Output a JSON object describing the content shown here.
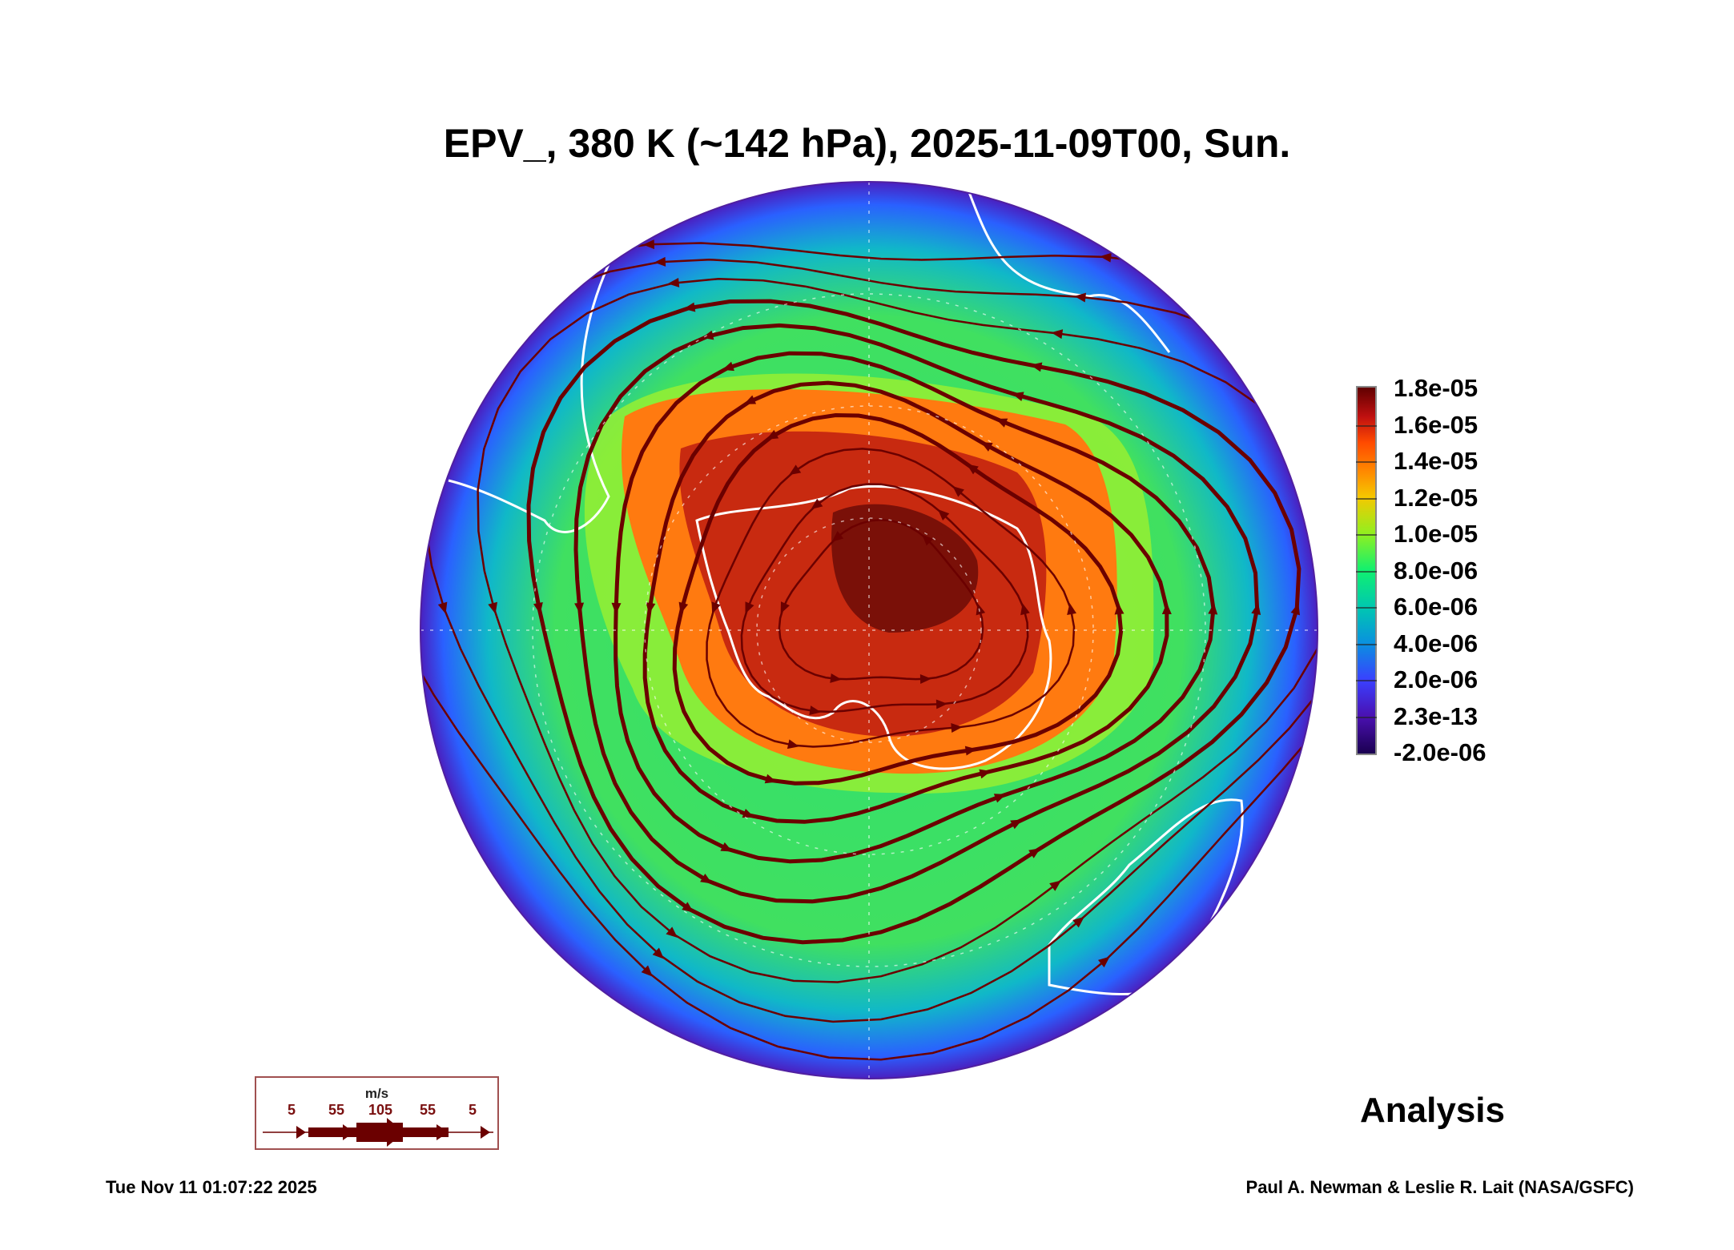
{
  "chart_data": {
    "type": "heatmap",
    "projection": "south-polar-stereographic",
    "title": "EPV_, 380 K (~142 hPa), 2025-11-09T00, Sun.",
    "variable": "EPV_",
    "level": "380 K (~142 hPa)",
    "colorbar": {
      "ticks": [
        "1.8e-05",
        "1.6e-05",
        "1.4e-05",
        "1.2e-05",
        "1.0e-05",
        "8.0e-06",
        "6.0e-06",
        "4.0e-06",
        "2.0e-06",
        "2.3e-13",
        "-2.0e-06"
      ],
      "range": [
        -2e-06,
        1.8e-05
      ]
    },
    "wind_legend": {
      "unit": "m/s",
      "values": [
        "5",
        "55",
        "105",
        "55",
        "5"
      ]
    },
    "label": "Analysis",
    "colors": {
      "streamline": "#6b0000",
      "coast": "#ffffff"
    }
  },
  "footer": {
    "timestamp": "Tue Nov 11 01:07:22 2025",
    "credit": "Paul A. Newman & Leslie R. Lait (NASA/GSFC)"
  }
}
